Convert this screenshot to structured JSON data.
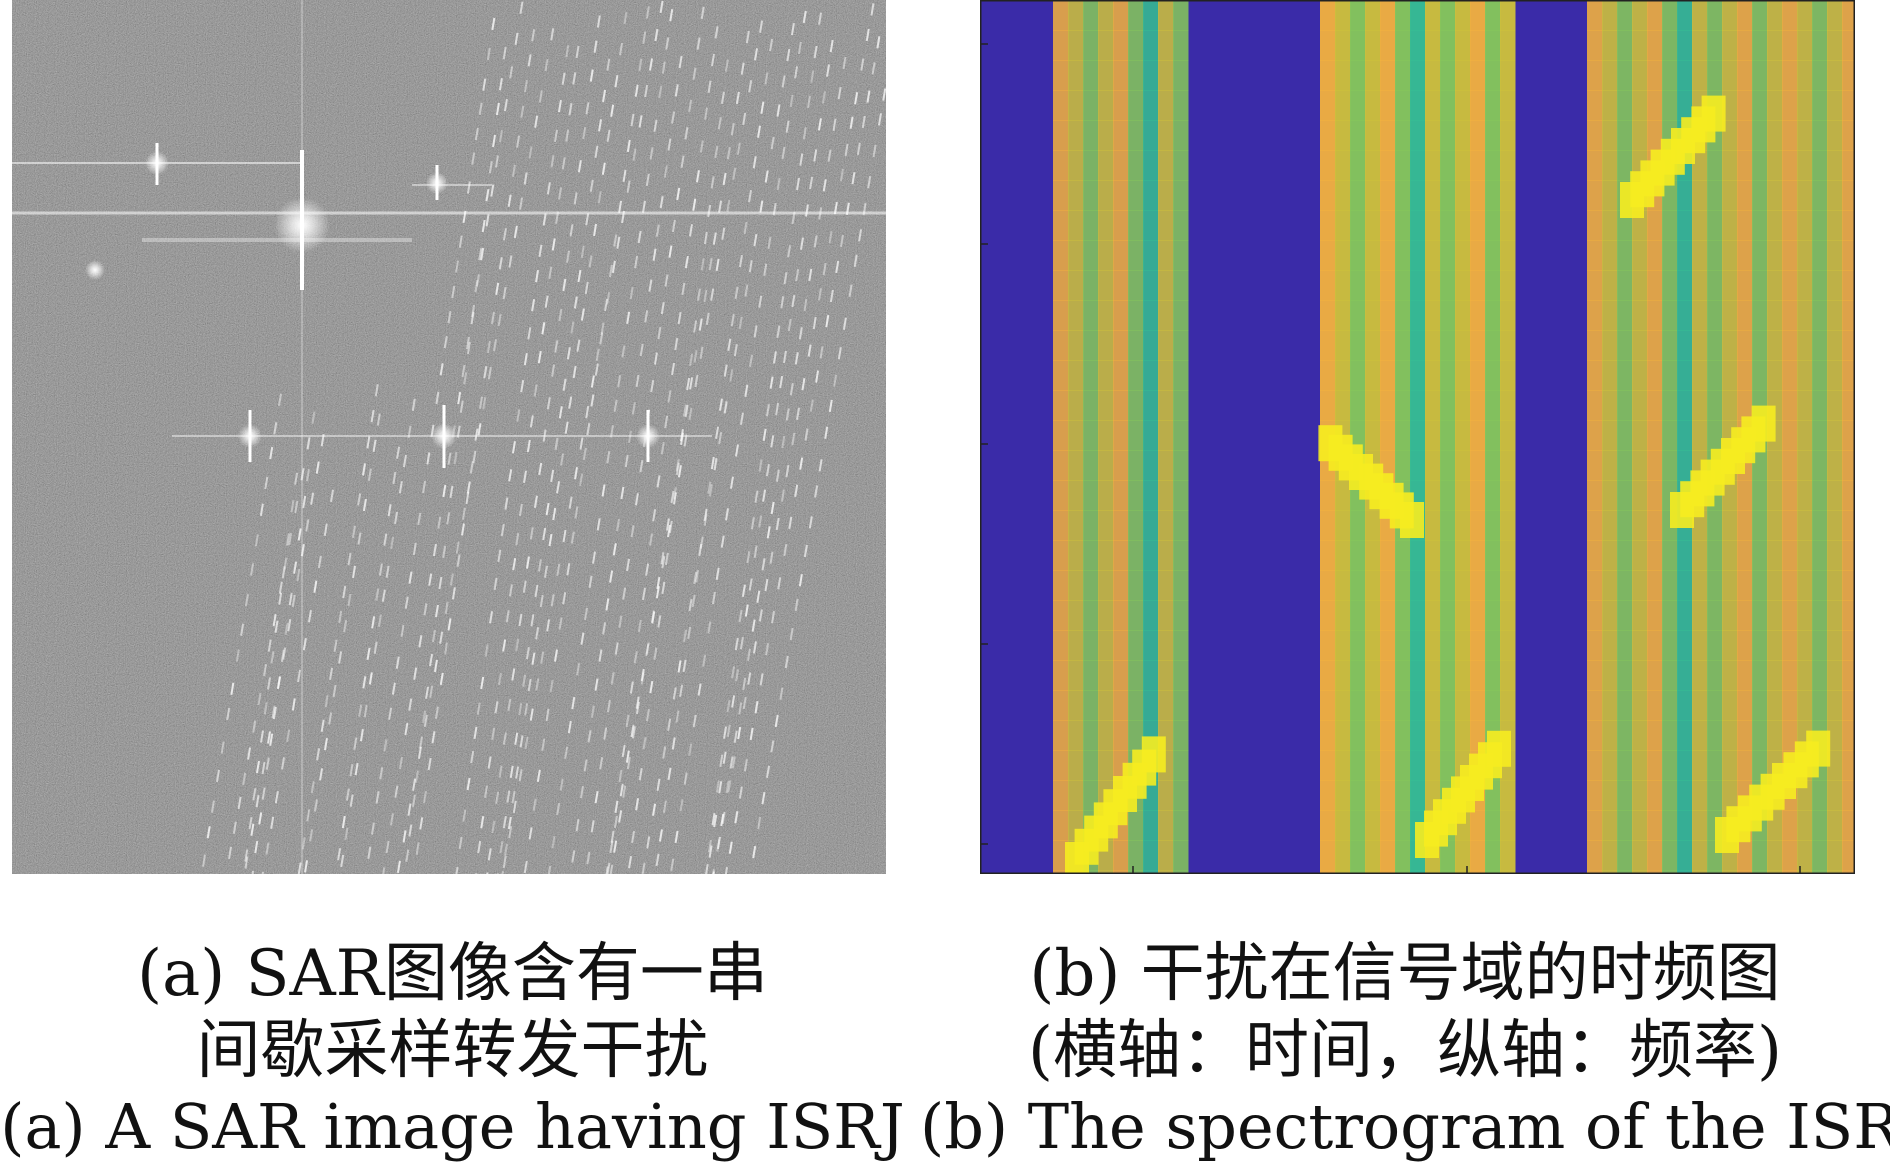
{
  "figure": {
    "panel_a": {
      "caption_cn_line1": "(a) SAR图像含有一串",
      "caption_cn_line2": "间歇采样转发干扰",
      "caption_en": "(a) A SAR image having ISRJ"
    },
    "panel_b": {
      "caption_cn_line1": "(b) 干扰在信号域的时频图",
      "caption_cn_line2": "(横轴：时间，纵轴：频率)",
      "caption_en": "(b) The spectrogram of the ISRJ",
      "colors": {
        "background": "#3a2ba8",
        "orange": "#f2b13e",
        "yellow": "#f6ec20",
        "green": "#86c85a",
        "teal": "#36bf92",
        "olive": "#cfc23a"
      }
    }
  }
}
